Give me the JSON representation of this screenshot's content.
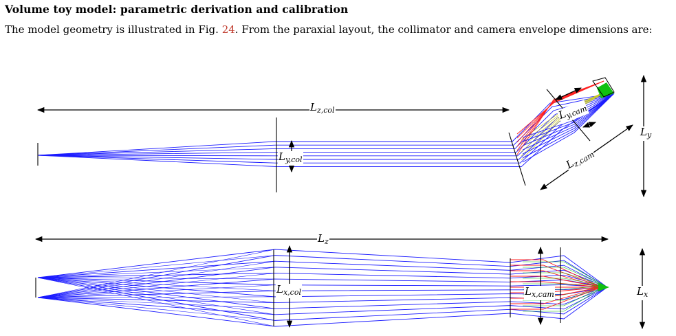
{
  "section": {
    "title": "Volume toy model: parametric derivation and calibration"
  },
  "paragraph": {
    "before_ref": "The model geometry is illustrated in Fig.",
    "fig_ref": "24",
    "after_ref": ". From the paraxial layout, the collimator and camera envelope dimensions are:"
  },
  "figure": {
    "top_view": {
      "labels": {
        "Lz_col": {
          "main": "L",
          "sub": "z,col"
        },
        "Ly_col": {
          "main": "L",
          "sub": "y,col"
        },
        "Ly_cam": {
          "main": "L",
          "sub": "y,cam"
        },
        "Lz_cam": {
          "main": "L",
          "sub": "z,cam"
        },
        "Ly": {
          "main": "L",
          "sub": "y"
        }
      }
    },
    "side_view": {
      "labels": {
        "Lz": {
          "main": "L",
          "sub": "z"
        },
        "Lx_col": {
          "main": "L",
          "sub": "x,col"
        },
        "Lx_cam": {
          "main": "L",
          "sub": "x,cam"
        },
        "Lx": {
          "main": "L",
          "sub": "x"
        }
      }
    },
    "colors": {
      "ray_main": "#1a1aff",
      "ray_red": "#ff2020",
      "ray_green": "#10c010",
      "ray_yellow": "#c8c820",
      "line": "#000000"
    }
  }
}
